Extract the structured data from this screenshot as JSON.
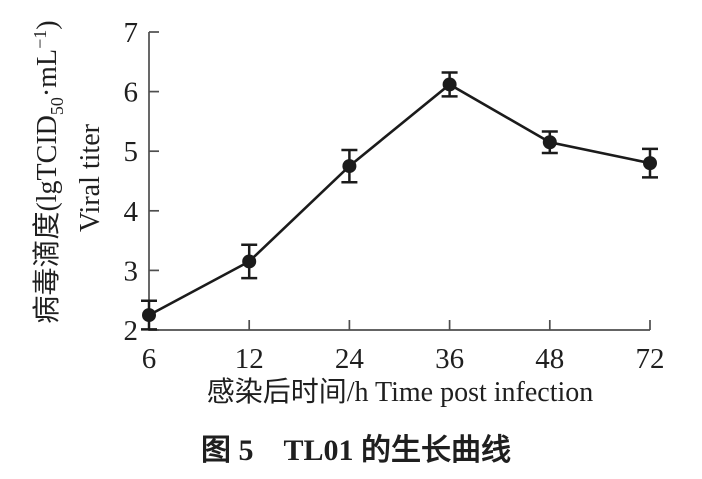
{
  "figure": {
    "caption": "图 5　TL01 的生长曲线",
    "xlabel_display": "感染后时间/h Time post infection",
    "ylabel_cn_prefix": "病毒滴度(lgTCID",
    "ylabel_sub": "50",
    "ylabel_mid": "·mL",
    "ylabel_sup": "−1",
    "ylabel_suffix": ")",
    "ylabel_en": "Viral titer"
  },
  "chart_data": {
    "type": "line",
    "title": "图 5　TL01 的生长曲线",
    "xlabel": "感染后时间/h Time post infection",
    "ylabel": "病毒滴度(lgTCID50·mL−1) Viral titer",
    "x": [
      6,
      12,
      24,
      36,
      48,
      72
    ],
    "x_tick_labels": [
      "6",
      "12",
      "24",
      "36",
      "48",
      "72"
    ],
    "x_scale": "categorical-evenly-spaced",
    "series": [
      {
        "name": "TL01 viral titer",
        "values": [
          2.25,
          3.15,
          4.75,
          6.12,
          5.15,
          4.8
        ],
        "y_err": [
          0.24,
          0.28,
          0.27,
          0.2,
          0.18,
          0.24
        ]
      }
    ],
    "y_ticks": [
      2,
      3,
      4,
      5,
      6,
      7
    ],
    "ylim": [
      2,
      7
    ],
    "marker": "filled-circle",
    "grid": false,
    "legend": false,
    "line_color": "#1b1b1b",
    "axis_color": "#4e4e4e",
    "tick_direction": "in"
  }
}
